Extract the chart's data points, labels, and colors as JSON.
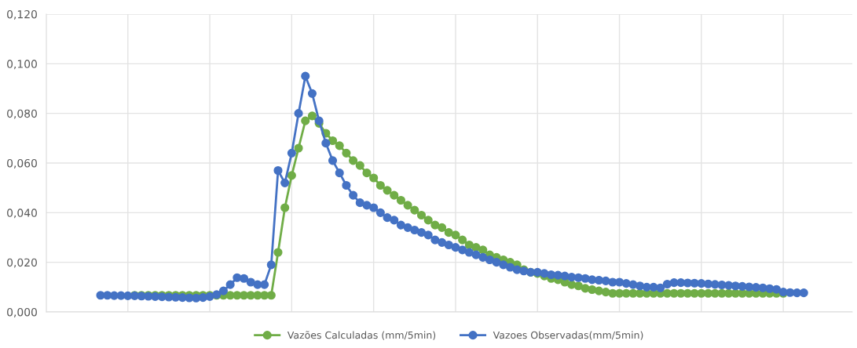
{
  "chart_data": {
    "type": "line",
    "categories": [
      null,
      null,
      null,
      null,
      null,
      null,
      null,
      null,
      null,
      null,
      null,
      null,
      null,
      null,
      null,
      null,
      null,
      null,
      null,
      null,
      null,
      null,
      null,
      null,
      null,
      null,
      null,
      null,
      null,
      null,
      null,
      null,
      null,
      null,
      null,
      null,
      null,
      null,
      null,
      null,
      null,
      null,
      null,
      null,
      null,
      null,
      null,
      null,
      null,
      null,
      null,
      null,
      null,
      null,
      null,
      null,
      null,
      null,
      null,
      null,
      null,
      null,
      null,
      null,
      null,
      null,
      null,
      null,
      null,
      null,
      null,
      null,
      null,
      null,
      null,
      null,
      null,
      null,
      null,
      null,
      null,
      null,
      null,
      null,
      null,
      null,
      null,
      null,
      null,
      null,
      null,
      null,
      null,
      null,
      null,
      null,
      null,
      null,
      null,
      null,
      null,
      null,
      null,
      null
    ],
    "series": [
      {
        "name": "Vazões Calculadas (mm/5min)",
        "color": "#70ad47",
        "values": [
          null,
          null,
          null,
          null,
          null,
          0.0067,
          0.0067,
          0.0067,
          0.0067,
          0.0067,
          0.0067,
          0.0067,
          0.0067,
          0.0067,
          0.0067,
          0.0067,
          0.0067,
          0.0067,
          0.0067,
          0.0067,
          0.0067,
          0.0067,
          0.0067,
          0.0067,
          0.0067,
          0.0067,
          0.024,
          0.042,
          0.055,
          0.066,
          0.077,
          0.079,
          0.076,
          0.072,
          0.069,
          0.067,
          0.064,
          0.061,
          0.059,
          0.056,
          0.054,
          0.051,
          0.049,
          0.047,
          0.045,
          0.043,
          0.041,
          0.039,
          0.037,
          0.035,
          0.034,
          0.032,
          0.031,
          0.029,
          0.027,
          0.026,
          0.025,
          0.023,
          0.022,
          0.021,
          0.02,
          0.019,
          0.017,
          0.016,
          0.0155,
          0.0145,
          0.0135,
          0.013,
          0.012,
          0.011,
          0.0105,
          0.0095,
          0.009,
          0.0085,
          0.008,
          0.0075,
          0.0075,
          0.0075,
          0.0075,
          0.0075,
          0.0075,
          0.0075,
          0.0075,
          0.0075,
          0.0075,
          0.0075,
          0.0075,
          0.0075,
          0.0075,
          0.0075,
          0.0075,
          0.0075,
          0.0075,
          0.0075,
          0.0075,
          0.0075,
          0.0075,
          0.0075,
          0.0075,
          0.0075,
          0.0075,
          null,
          null,
          null
        ]
      },
      {
        "name": "Vazoes Observadas(mm/5min)",
        "color": "#4472c4",
        "values": [
          0.0067,
          0.0067,
          0.0066,
          0.0066,
          0.0065,
          0.0065,
          0.0064,
          0.0063,
          0.0062,
          0.0061,
          0.006,
          0.0059,
          0.0058,
          0.0057,
          0.0056,
          0.0058,
          0.0062,
          0.007,
          0.0085,
          0.011,
          0.0138,
          0.0135,
          0.012,
          0.011,
          0.011,
          0.019,
          0.057,
          0.052,
          0.064,
          0.08,
          0.095,
          0.088,
          0.077,
          0.068,
          0.061,
          0.056,
          0.051,
          0.047,
          0.044,
          0.043,
          0.042,
          0.04,
          0.038,
          0.037,
          0.035,
          0.034,
          0.033,
          0.032,
          0.031,
          0.029,
          0.028,
          0.027,
          0.026,
          0.025,
          0.024,
          0.023,
          0.022,
          0.021,
          0.02,
          0.019,
          0.018,
          0.017,
          0.0165,
          0.016,
          0.016,
          0.0155,
          0.015,
          0.0148,
          0.0145,
          0.014,
          0.0138,
          0.0135,
          0.013,
          0.0128,
          0.0125,
          0.012,
          0.012,
          0.0115,
          0.011,
          0.0105,
          0.01,
          0.01,
          0.0097,
          0.0112,
          0.0118,
          0.0118,
          0.0117,
          0.0116,
          0.0115,
          0.0113,
          0.0111,
          0.0109,
          0.0107,
          0.0105,
          0.0103,
          0.0101,
          0.0099,
          0.0097,
          0.0094,
          0.0091,
          0.008,
          0.0078,
          0.0077,
          0.0077
        ]
      }
    ],
    "ylim": [
      0,
      0.12
    ],
    "yticks": [
      {
        "value": 0,
        "label": "0,000"
      },
      {
        "value": 0.02,
        "label": "0,020"
      },
      {
        "value": 0.04,
        "label": "0,040"
      },
      {
        "value": 0.06,
        "label": "0,060"
      },
      {
        "value": 0.08,
        "label": "0,080"
      },
      {
        "value": 0.1,
        "label": "0,100"
      },
      {
        "value": 0.12,
        "label": "0,120"
      }
    ],
    "grid": true,
    "legend": "bottom",
    "marker": "circle",
    "line_style": "solid",
    "tick_labels": "y"
  }
}
